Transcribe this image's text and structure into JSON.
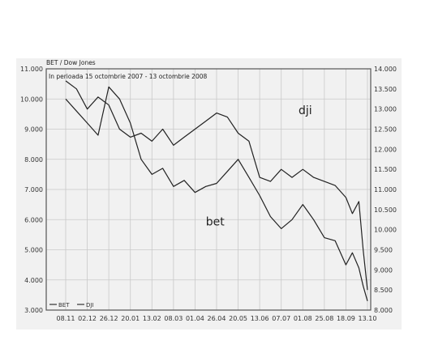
{
  "chart_data": {
    "type": "line",
    "title": "BET / Dow Jones",
    "subtitle": "In perioada 15 octombrie 2007 - 13 octombrie 2008",
    "x_ticks": [
      "08.11",
      "02.12",
      "26.12",
      "20.01",
      "13.02",
      "08.03",
      "01.04",
      "26.04",
      "20.05",
      "13.06",
      "07.07",
      "01.08",
      "25.08",
      "18.09",
      "13.10"
    ],
    "y_left": {
      "range": [
        3000,
        11000
      ],
      "ticks": [
        "3.000",
        "4.000",
        "5.000",
        "6.000",
        "7.000",
        "8.000",
        "9.000",
        "10.000",
        "11.000"
      ]
    },
    "y_right": {
      "range": [
        8000,
        14000
      ],
      "ticks": [
        "8.000",
        "8.500",
        "9.000",
        "9.500",
        "10.000",
        "10.500",
        "11.000",
        "11.500",
        "12.000",
        "12.500",
        "13.000",
        "13.500",
        "14.000"
      ]
    },
    "grid": true,
    "legend_position": "bottom-left",
    "legend": [
      "BET",
      "DJI"
    ],
    "series": [
      {
        "name": "BET",
        "axis": "left",
        "x_index": [
          0,
          0.5,
          1,
          1.5,
          2,
          2.5,
          3,
          3.5,
          4,
          4.5,
          5,
          5.5,
          6,
          6.5,
          7,
          7.5,
          8,
          8.5,
          9,
          9.5,
          10,
          10.5,
          11,
          11.5,
          12,
          12.5,
          13,
          13.3,
          13.6,
          13.8,
          14
        ],
        "values": [
          10000,
          9600,
          9200,
          8800,
          10400,
          10000,
          9200,
          8000,
          7500,
          7700,
          7100,
          7300,
          6900,
          7100,
          7200,
          7600,
          8000,
          7400,
          6800,
          6100,
          5700,
          6000,
          6500,
          6000,
          5400,
          5300,
          4500,
          4900,
          4400,
          3800,
          3300
        ]
      },
      {
        "name": "DJI",
        "axis": "right",
        "x_index": [
          0,
          0.5,
          1,
          1.5,
          2,
          2.5,
          3,
          3.5,
          4,
          4.5,
          5,
          5.5,
          6,
          6.5,
          7,
          7.5,
          8,
          8.5,
          9,
          9.5,
          10,
          10.5,
          11,
          11.5,
          12,
          12.5,
          13,
          13.3,
          13.6,
          13.8,
          14
        ],
        "values": [
          13700,
          13500,
          13000,
          13300,
          13100,
          12500,
          12300,
          12400,
          12200,
          12500,
          12100,
          12300,
          12500,
          12700,
          12900,
          12800,
          12400,
          12200,
          11300,
          11200,
          11500,
          11300,
          11500,
          11300,
          11200,
          11100,
          10800,
          10400,
          10700,
          9500,
          8500
        ]
      }
    ],
    "annotations": [
      {
        "text": "dji",
        "x_index": 10.8,
        "y_left": 9500
      },
      {
        "text": "bet",
        "x_index": 6.5,
        "y_left": 5800
      }
    ]
  }
}
